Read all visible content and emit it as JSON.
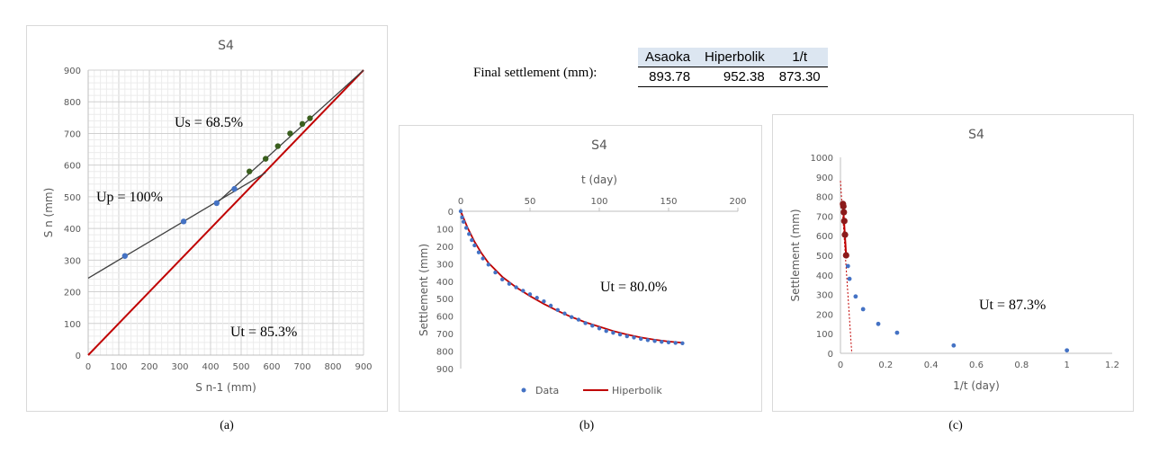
{
  "final_settlement": {
    "label": "Final settlement (mm):",
    "headers": [
      "Asaoka",
      "Hiperbolik",
      "1/t"
    ],
    "values": [
      "893.78",
      "952.38",
      "873.30"
    ]
  },
  "captions": [
    "(a)",
    "(b)",
    "(c)"
  ],
  "annotations": {
    "a_us": "Us = 68.5%",
    "a_up": "Up = 100%",
    "a_ut": "Ut = 85.3%",
    "b_ut": "Ut = 80.0%",
    "c_ut": "Ut = 87.3%"
  },
  "colors": {
    "blue": "#4472c4",
    "green": "#3a5f1e",
    "red": "#c00000",
    "darkred": "#8b1a1a",
    "line": "#404040"
  },
  "chart_data": [
    {
      "type": "scatter",
      "title": "S4",
      "xlabel": "S n-1 (mm)",
      "ylabel": "S n (mm)",
      "xlim": [
        0,
        900
      ],
      "ylim": [
        0,
        900
      ],
      "xticks": [
        0,
        100,
        200,
        300,
        400,
        500,
        600,
        700,
        800,
        900
      ],
      "yticks": [
        0,
        100,
        200,
        300,
        400,
        500,
        600,
        700,
        800,
        900
      ],
      "grid": true,
      "series": [
        {
          "points": [
            [
              120,
              313
            ],
            [
              312,
              422
            ],
            [
              420,
              480
            ],
            [
              478,
              525
            ]
          ]
        },
        {
          "points": [
            [
              527,
              580
            ],
            [
              580,
              620
            ],
            [
              620,
              660
            ],
            [
              660,
              700
            ],
            [
              700,
              730
            ],
            [
              725,
              748
            ]
          ]
        },
        {
          "line": [
            [
              0,
              243
            ],
            [
              580,
              576
            ]
          ]
        },
        {
          "line": [
            [
              420,
              480
            ],
            [
              900,
              900
            ]
          ]
        },
        {
          "line": [
            [
              0,
              0
            ],
            [
              900,
              900
            ]
          ]
        }
      ]
    },
    {
      "type": "scatter",
      "title": "S4",
      "xlabel": "t (day)",
      "ylabel": "Settlement (mm)",
      "xlim": [
        0,
        200
      ],
      "ylim": [
        0,
        900
      ],
      "xticks": [
        0,
        50,
        100,
        150,
        200
      ],
      "yticks": [
        0,
        100,
        200,
        300,
        400,
        500,
        600,
        700,
        800,
        900
      ],
      "y_inverted": true,
      "x_axis_position": "top",
      "legend_position": "bottom",
      "grid": false,
      "series": [
        {
          "name": "Data",
          "points": [
            [
              0,
              0
            ],
            [
              1,
              35
            ],
            [
              2,
              60
            ],
            [
              4,
              95
            ],
            [
              6,
              130
            ],
            [
              8,
              165
            ],
            [
              10,
              195
            ],
            [
              13,
              235
            ],
            [
              16,
              270
            ],
            [
              20,
              305
            ],
            [
              25,
              350
            ],
            [
              30,
              390
            ],
            [
              35,
              415
            ],
            [
              40,
              435
            ],
            [
              45,
              455
            ],
            [
              50,
              475
            ],
            [
              55,
              495
            ],
            [
              60,
              515
            ],
            [
              65,
              540
            ],
            [
              70,
              565
            ],
            [
              75,
              585
            ],
            [
              80,
              605
            ],
            [
              85,
              620
            ],
            [
              90,
              640
            ],
            [
              95,
              655
            ],
            [
              100,
              670
            ],
            [
              105,
              685
            ],
            [
              110,
              695
            ],
            [
              115,
              705
            ],
            [
              120,
              715
            ],
            [
              125,
              722
            ],
            [
              130,
              730
            ],
            [
              135,
              737
            ],
            [
              140,
              742
            ],
            [
              145,
              747
            ],
            [
              150,
              750
            ],
            [
              155,
              753
            ],
            [
              160,
              755
            ]
          ]
        },
        {
          "name": "Hiperbolik",
          "points": [
            [
              0,
              0
            ],
            [
              5,
              95
            ],
            [
              10,
              175
            ],
            [
              15,
              240
            ],
            [
              20,
              295
            ],
            [
              30,
              375
            ],
            [
              40,
              435
            ],
            [
              50,
              485
            ],
            [
              60,
              530
            ],
            [
              70,
              570
            ],
            [
              80,
              605
            ],
            [
              90,
              635
            ],
            [
              100,
              660
            ],
            [
              110,
              685
            ],
            [
              120,
              705
            ],
            [
              130,
              722
            ],
            [
              140,
              735
            ],
            [
              150,
              745
            ],
            [
              160,
              752
            ]
          ]
        }
      ]
    },
    {
      "type": "scatter",
      "title": "S4",
      "xlabel": "1/t (day)",
      "ylabel": "Settlement (mm)",
      "xlim": [
        0,
        1.2
      ],
      "ylim": [
        0,
        1000
      ],
      "xticks": [
        0,
        0.2,
        0.4,
        0.6,
        0.8,
        1,
        1.2
      ],
      "yticks": [
        0,
        100,
        200,
        300,
        400,
        500,
        600,
        700,
        800,
        900,
        1000
      ],
      "grid": false,
      "series": [
        {
          "points": [
            [
              1.0,
              15
            ],
            [
              0.5,
              40
            ],
            [
              0.25,
              105
            ],
            [
              0.167,
              150
            ],
            [
              0.1,
              225
            ],
            [
              0.067,
              290
            ],
            [
              0.04,
              380
            ],
            [
              0.033,
              445
            ]
          ]
        },
        {
          "points": [
            [
              0.025,
              500
            ],
            [
              0.02,
              605
            ],
            [
              0.017,
              675
            ],
            [
              0.015,
              720
            ],
            [
              0.013,
              750
            ],
            [
              0.011,
              762
            ]
          ]
        },
        {
          "line": [
            [
              0.025,
              500
            ],
            [
              0.011,
              762
            ]
          ]
        },
        {
          "line": [
            [
              0,
              880
            ],
            [
              0.05,
              0
            ]
          ]
        }
      ]
    }
  ]
}
